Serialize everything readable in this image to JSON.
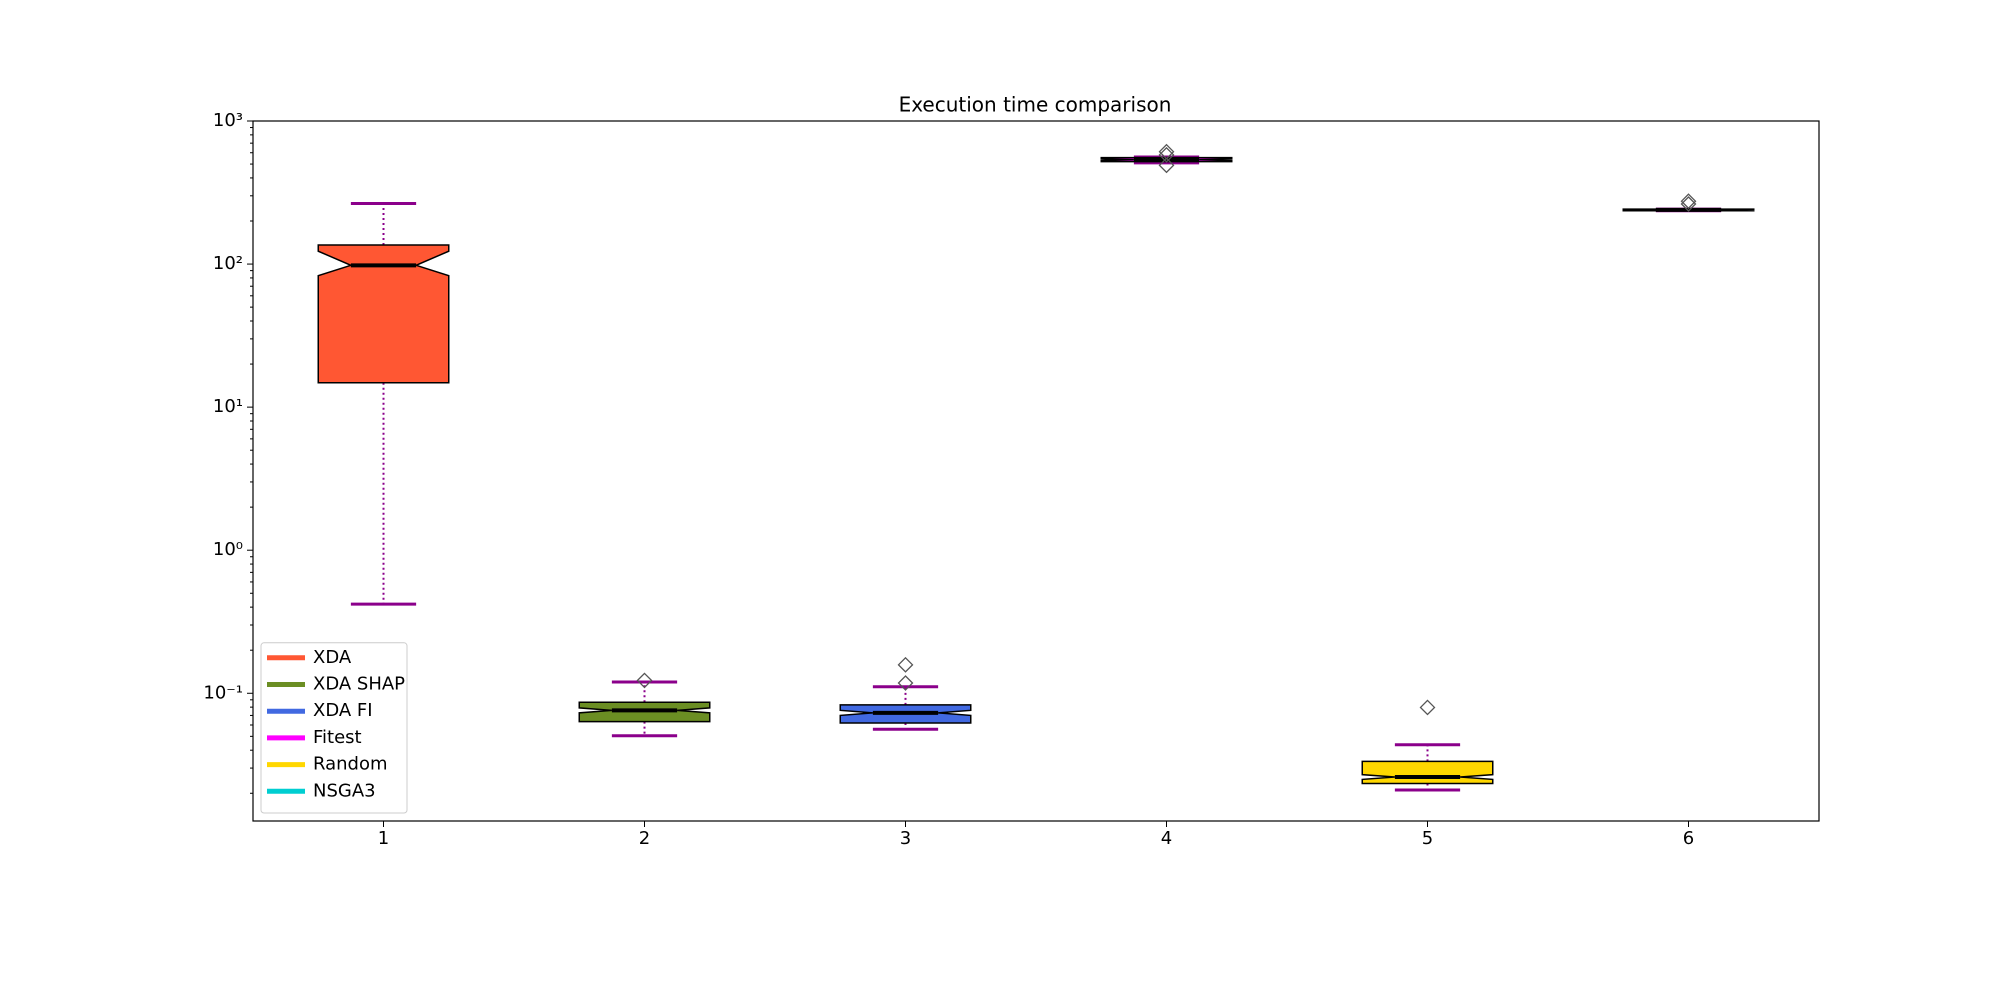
{
  "chart_data": {
    "type": "box",
    "title": "Execution time comparison",
    "yscale": "log",
    "ylim": [
      0.0128,
      1000
    ],
    "yticks": [
      {
        "value": 0.1,
        "label": "10⁻¹"
      },
      {
        "value": 1,
        "label": "10⁰"
      },
      {
        "value": 10,
        "label": "10¹"
      },
      {
        "value": 100,
        "label": "10²"
      },
      {
        "value": 1000,
        "label": "10³"
      }
    ],
    "categories": [
      "1",
      "2",
      "3",
      "4",
      "5",
      "6"
    ],
    "legend": "lower left",
    "whisker_color": "#8b008b",
    "series": [
      {
        "name": "XDA",
        "color": "#ff5733",
        "whislo": 0.42,
        "q1": 14.8,
        "notch_lo": 83,
        "med": 98,
        "notch_hi": 123,
        "q3": 136,
        "whishi": 265,
        "fliers": []
      },
      {
        "name": "XDA SHAP",
        "color": "#6b8e23",
        "whislo": 0.0505,
        "q1": 0.0634,
        "notch_lo": 0.073,
        "med": 0.076,
        "notch_hi": 0.079,
        "q3": 0.0865,
        "whishi": 0.12,
        "fliers": [
          0.123
        ]
      },
      {
        "name": "XDA FI",
        "color": "#4169e1",
        "whislo": 0.056,
        "q1": 0.062,
        "notch_lo": 0.07,
        "med": 0.073,
        "notch_hi": 0.076,
        "q3": 0.083,
        "whishi": 0.111,
        "fliers": [
          0.158,
          0.118
        ]
      },
      {
        "name": "Fitest",
        "color": "#ff00ff",
        "whislo": 510,
        "q1": 520,
        "notch_lo": 530,
        "med": 537,
        "notch_hi": 544,
        "q3": 555,
        "whishi": 560,
        "fliers": [
          610,
          490,
          580
        ]
      },
      {
        "name": "Random",
        "color": "#ffd700",
        "whislo": 0.0211,
        "q1": 0.0234,
        "notch_lo": 0.025,
        "med": 0.026,
        "notch_hi": 0.027,
        "q3": 0.0334,
        "whishi": 0.0437,
        "fliers": [
          0.0796
        ]
      },
      {
        "name": "NSGA3",
        "color": "#00ced1",
        "whislo": 236,
        "q1": 236,
        "notch_lo": 237,
        "med": 239,
        "notch_hi": 241,
        "q3": 242,
        "whishi": 242,
        "fliers": [
          275,
          263
        ]
      }
    ]
  }
}
